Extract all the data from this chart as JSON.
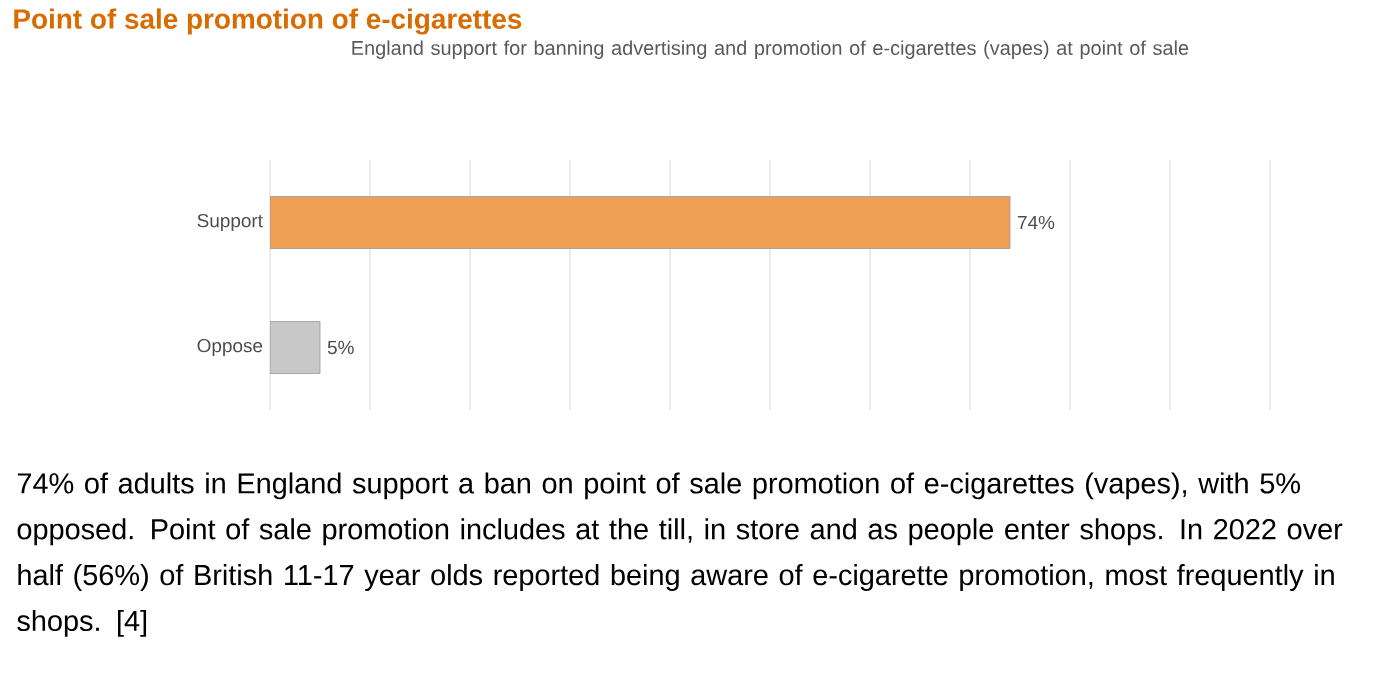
{
  "chart_data": {
    "type": "bar",
    "orientation": "horizontal",
    "title": "Point of sale promotion of e-cigarettes",
    "subtitle": "England  support  for banning  advertising  and  promotion  of  e-cigarettes (vapes)  at point of sale",
    "categories": [
      "Support",
      "Oppose"
    ],
    "values": [
      74,
      5
    ],
    "colors": [
      "#f0a055",
      "#c8c8c8"
    ],
    "value_labels": [
      "74%",
      "5%"
    ],
    "xlim": [
      0,
      100
    ],
    "xticks": [
      {
        "value": 0,
        "label": null
      },
      {
        "value": 10,
        "label": null
      },
      {
        "value": 20,
        "label": null
      },
      {
        "value": 30,
        "label": null
      },
      {
        "value": 40,
        "label": null
      },
      {
        "value": 50,
        "label": null
      },
      {
        "value": 60,
        "label": null
      },
      {
        "value": 70,
        "label": null
      },
      {
        "value": 80,
        "label": null
      },
      {
        "value": 90,
        "label": null
      },
      {
        "value": 100,
        "label": null
      }
    ],
    "tick_labels": "y",
    "grid": "x",
    "annotations": [
      "74% of adults in England support a ban on point of sale promotion of e-cigarettes (vapes), with 5% opposed. Point of sale promotion includes at the till, in store and as people enter shops. In 2022 over half (56%) of British 11-17 year olds reported being aware of e-cigarette promotion, most frequently in shops. [4]"
    ]
  }
}
